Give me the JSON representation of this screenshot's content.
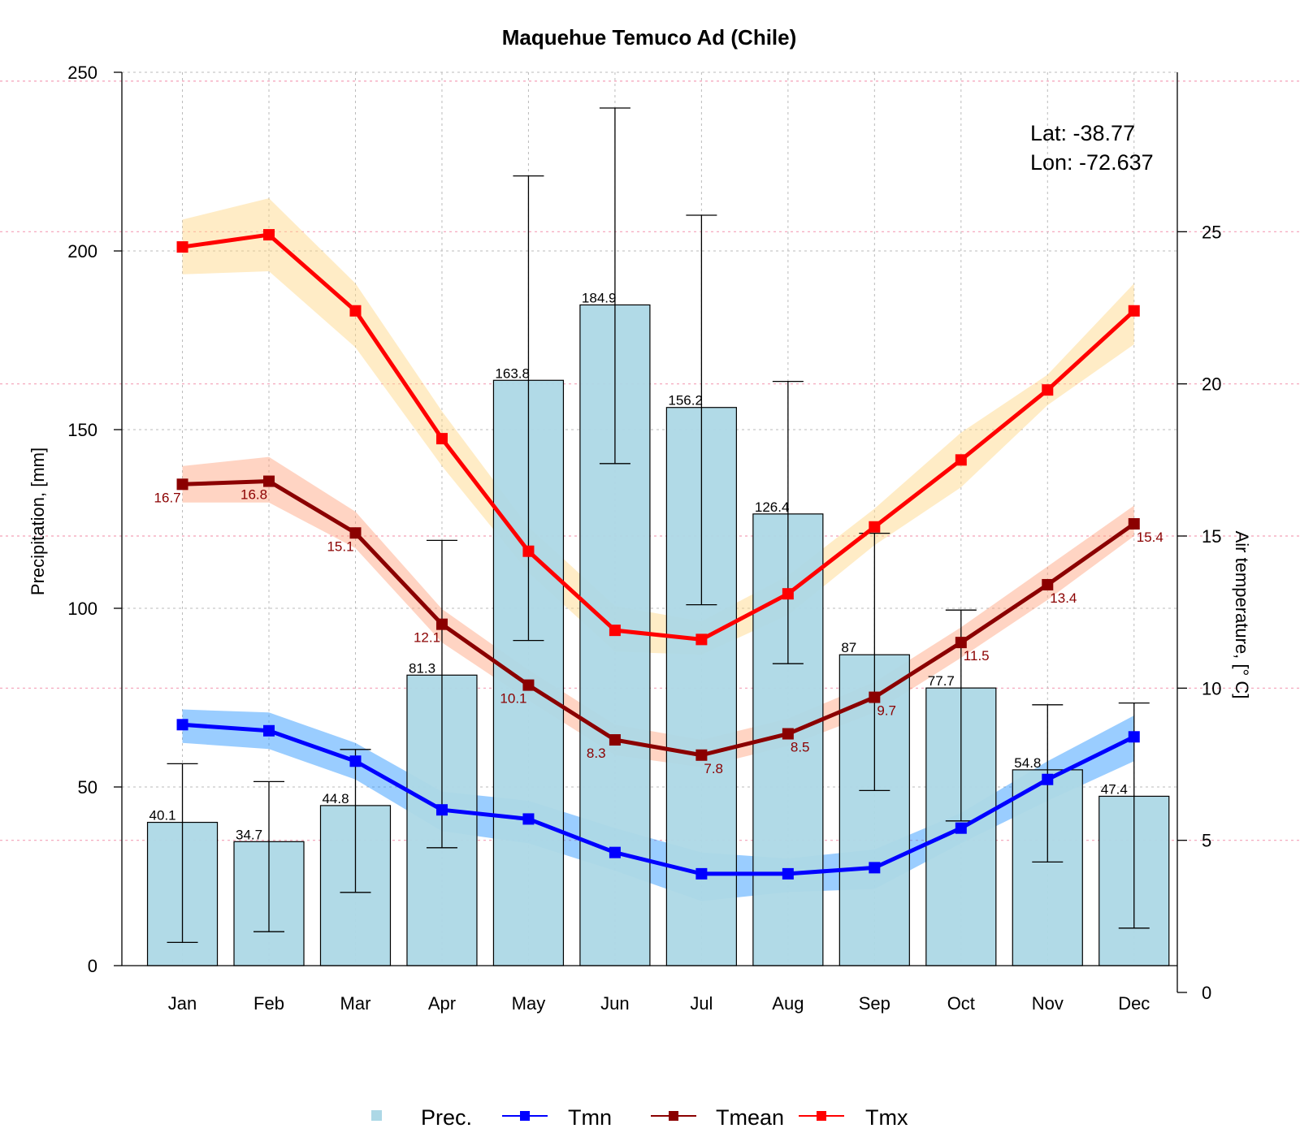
{
  "chart_data": {
    "type": "bar+line",
    "title": "Maquehue Temuco Ad (Chile)",
    "ylabel_left": "Precipitation, [mm]",
    "ylabel_right": "Air temperature, [° C]",
    "ylim_left": [
      0,
      250
    ],
    "ylim_right": [
      0,
      30
    ],
    "yticks_left": [
      0,
      50,
      100,
      150,
      200,
      250
    ],
    "yticks_right": [
      0,
      5,
      10,
      15,
      20,
      25
    ],
    "categories": [
      "Jan",
      "Feb",
      "Mar",
      "Apr",
      "May",
      "Jun",
      "Jul",
      "Aug",
      "Sep",
      "Oct",
      "Nov",
      "Dec"
    ],
    "precipitation": {
      "name": "Prec.",
      "color": "#add8e6",
      "values": [
        40.1,
        34.7,
        44.8,
        81.3,
        163.8,
        184.9,
        156.2,
        126.4,
        87,
        77.7,
        54.8,
        47.4
      ],
      "labels": [
        "40.1",
        "34.7",
        "44.8",
        "81.3",
        "163.8",
        "184.9",
        "156.2",
        "126.4",
        "87",
        "77.7",
        "54.8",
        "47.4"
      ],
      "err_low": [
        6.5,
        9.5,
        20.5,
        33,
        91,
        140.5,
        101,
        84.5,
        49,
        40.5,
        29,
        10.5
      ],
      "err_high": [
        56.5,
        51.5,
        60.5,
        119,
        221,
        240,
        210,
        163.5,
        121,
        99.5,
        73,
        73.5
      ]
    },
    "series": [
      {
        "name": "Tmn",
        "color": "#0000ff",
        "band_color": "#1e90ff",
        "values": [
          8.8,
          8.6,
          7.6,
          6.0,
          5.7,
          4.6,
          3.9,
          3.9,
          4.1,
          5.4,
          7.0,
          8.4
        ],
        "band_low": [
          8.2,
          8.0,
          7.0,
          5.3,
          4.9,
          4.0,
          3.0,
          3.3,
          3.4,
          4.9,
          6.3,
          7.6
        ],
        "band_high": [
          9.3,
          9.2,
          8.2,
          6.6,
          6.3,
          5.4,
          4.6,
          4.4,
          4.7,
          5.9,
          7.6,
          9.1
        ]
      },
      {
        "name": "Tmean",
        "color": "#8b0000",
        "band_color": "#ffa07a",
        "values": [
          16.7,
          16.8,
          15.1,
          12.1,
          10.1,
          8.3,
          7.8,
          8.5,
          9.7,
          11.5,
          13.4,
          15.4
        ],
        "labels": [
          "16.7",
          "16.8",
          "15.1",
          "12.1",
          "10.1",
          "8.3",
          "7.8",
          "8.5",
          "9.7",
          "11.5",
          "13.4",
          "15.4"
        ],
        "band_low": [
          16.1,
          16.1,
          14.6,
          11.5,
          9.6,
          7.8,
          7.4,
          8.1,
          9.2,
          11.0,
          12.9,
          15.0
        ],
        "band_high": [
          17.3,
          17.6,
          15.8,
          12.6,
          10.6,
          8.8,
          8.3,
          9.0,
          10.2,
          12.0,
          14.0,
          16.0
        ]
      },
      {
        "name": "Tmx",
        "color": "#ff0000",
        "band_color": "#ffd580",
        "values": [
          24.5,
          24.9,
          22.4,
          18.2,
          14.5,
          11.9,
          11.6,
          13.1,
          15.3,
          17.5,
          19.8,
          22.4
        ],
        "band_low": [
          23.6,
          23.7,
          21.2,
          17.3,
          13.8,
          11.2,
          11.1,
          12.4,
          14.7,
          16.6,
          19.3,
          21.3
        ],
        "band_high": [
          25.4,
          26.1,
          23.3,
          19.1,
          15.3,
          12.7,
          12.2,
          13.7,
          15.9,
          18.4,
          20.3,
          23.3
        ]
      }
    ],
    "annotations": [
      "Lat: -38.77",
      "Lon: -72.637"
    ],
    "grid": true,
    "legend_position": "bottom"
  },
  "legend": {
    "prec": "Prec.",
    "tmn": "Tmn",
    "tmean": "Tmean",
    "tmx": "Tmx"
  }
}
